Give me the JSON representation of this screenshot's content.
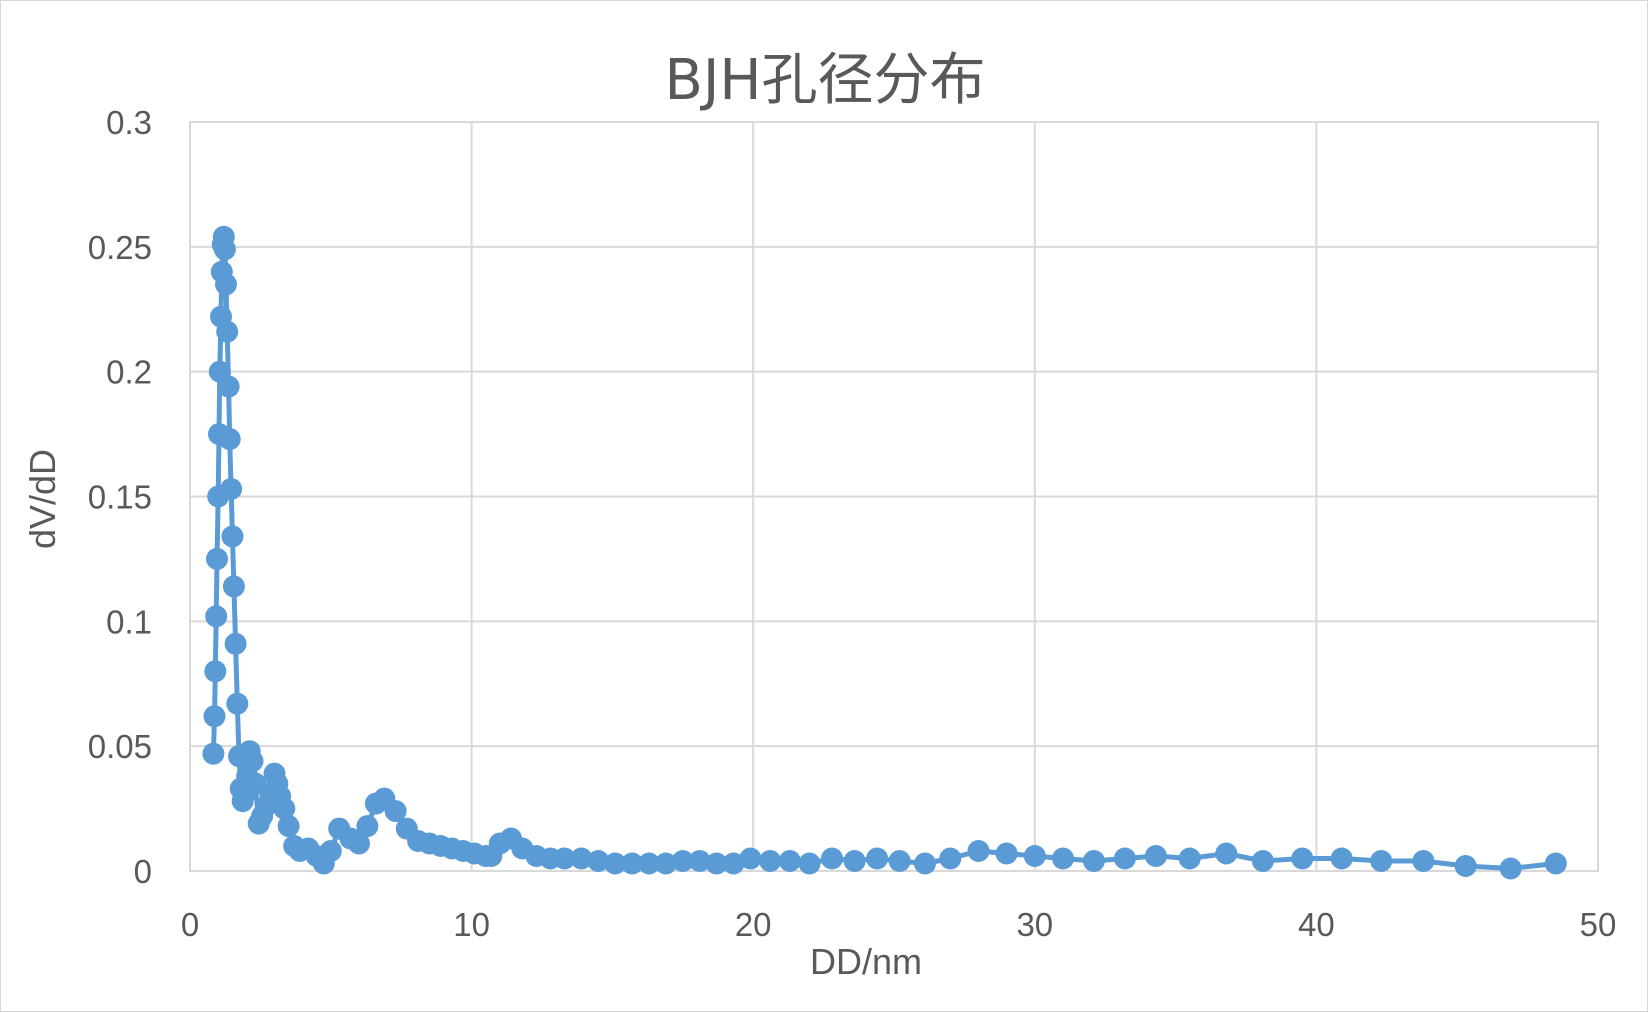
{
  "chart_data": {
    "type": "scatter",
    "title": "BJH孔径分布",
    "xlabel": "DD/nm",
    "ylabel": "dV/dD",
    "xlim": [
      0,
      50
    ],
    "ylim": [
      0,
      0.3
    ],
    "x_ticks": [
      "0",
      "10",
      "20",
      "30",
      "40",
      "50"
    ],
    "y_ticks": [
      "0",
      "0.05",
      "0.1",
      "0.15",
      "0.2",
      "0.25",
      "0.3"
    ],
    "grid": true,
    "legend": "none",
    "series_color": "#5b9bd5",
    "series": [
      {
        "x": [
          0.83,
          0.87,
          0.9,
          0.93,
          0.96,
          1.0,
          1.03,
          1.06,
          1.1,
          1.13,
          1.16,
          1.2,
          1.24,
          1.28,
          1.32,
          1.37,
          1.41,
          1.46,
          1.51,
          1.56,
          1.62,
          1.68,
          1.74,
          1.8,
          1.87,
          1.95,
          2.03,
          2.12,
          2.22,
          2.32,
          2.44,
          2.56,
          2.7,
          2.85,
          3.0,
          3.1,
          3.2,
          3.35,
          3.5,
          3.7,
          3.9,
          4.2,
          4.5,
          4.75,
          5.0,
          5.3,
          5.7,
          6.0,
          6.3,
          6.6,
          6.9,
          7.3,
          7.7,
          8.1,
          8.5,
          8.9,
          9.3,
          9.7,
          10.1,
          10.5,
          10.7,
          11.0,
          11.4,
          11.8,
          12.3,
          12.8,
          13.3,
          13.9,
          14.5,
          15.1,
          15.7,
          16.3,
          16.9,
          17.5,
          18.1,
          18.7,
          19.3,
          19.9,
          20.6,
          21.3,
          22.0,
          22.8,
          23.6,
          24.4,
          25.2,
          26.1,
          27.0,
          28.0,
          29.0,
          30.0,
          31.0,
          32.1,
          33.2,
          34.3,
          35.5,
          36.8,
          38.1,
          39.5,
          40.9,
          42.3,
          43.8,
          45.3,
          46.9,
          48.5
        ],
        "y": [
          0.047,
          0.062,
          0.08,
          0.102,
          0.125,
          0.15,
          0.175,
          0.2,
          0.222,
          0.24,
          0.251,
          0.254,
          0.249,
          0.235,
          0.216,
          0.194,
          0.173,
          0.153,
          0.134,
          0.114,
          0.091,
          0.067,
          0.046,
          0.033,
          0.028,
          0.031,
          0.038,
          0.048,
          0.044,
          0.035,
          0.019,
          0.022,
          0.026,
          0.031,
          0.039,
          0.035,
          0.03,
          0.025,
          0.018,
          0.01,
          0.008,
          0.009,
          0.006,
          0.003,
          0.008,
          0.017,
          0.013,
          0.011,
          0.018,
          0.027,
          0.029,
          0.024,
          0.017,
          0.012,
          0.011,
          0.01,
          0.009,
          0.008,
          0.007,
          0.006,
          0.006,
          0.011,
          0.013,
          0.009,
          0.006,
          0.005,
          0.005,
          0.005,
          0.004,
          0.003,
          0.003,
          0.003,
          0.003,
          0.004,
          0.004,
          0.003,
          0.003,
          0.005,
          0.004,
          0.004,
          0.003,
          0.005,
          0.004,
          0.005,
          0.004,
          0.003,
          0.005,
          0.008,
          0.007,
          0.006,
          0.005,
          0.004,
          0.005,
          0.006,
          0.005,
          0.007,
          0.004,
          0.005,
          0.005,
          0.004,
          0.004,
          0.002,
          0.001,
          0.003
        ]
      }
    ]
  }
}
